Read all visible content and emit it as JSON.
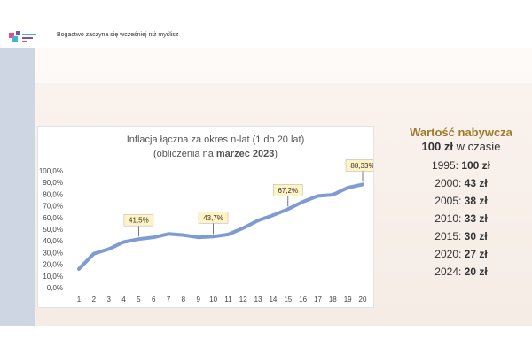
{
  "header": {
    "title": "Bogactwo zaczyna się wcześniej niż myślisz"
  },
  "chart_data": {
    "type": "line",
    "title_line1": "Inflacja łączna za okres n-lat (1 do 20 lat)",
    "title_line2_prefix": "(obliczenia  na ",
    "title_line2_bold": "marzec 2023",
    "title_line2_suffix": ")",
    "categories": [
      "1",
      "2",
      "3",
      "4",
      "5",
      "6",
      "7",
      "8",
      "9",
      "10",
      "11",
      "12",
      "13",
      "14",
      "15",
      "16",
      "17",
      "18",
      "19",
      "20"
    ],
    "values": [
      16,
      29,
      33,
      39,
      41.5,
      43,
      46,
      45,
      43,
      43.7,
      45.5,
      51,
      57.5,
      62,
      67.2,
      73.5,
      78.5,
      79.5,
      85.5,
      88.33
    ],
    "yticks": [
      "0,0%",
      "10,0%",
      "20,0%",
      "30,0%",
      "40,0%",
      "50,0%",
      "60,0%",
      "70,0%",
      "80,0%",
      "90,0%",
      "100,0%"
    ],
    "ylim": [
      0,
      100
    ],
    "grid": false,
    "line_color": "#7f9bd3",
    "annotations": [
      {
        "index": 4,
        "label": "41,5%"
      },
      {
        "index": 9,
        "label": "43,7%"
      },
      {
        "index": 14,
        "label": "67,2%"
      },
      {
        "index": 19,
        "label": "88,33%"
      }
    ]
  },
  "side": {
    "title": "Wartość nabywcza",
    "subtitle_amount": "100 zł",
    "subtitle_text": " w czasie",
    "items": [
      {
        "year": "1995:",
        "value": "100 zł"
      },
      {
        "year": "2000:",
        "value": "43 zł"
      },
      {
        "year": "2005:",
        "value": "38 zł"
      },
      {
        "year": "2010:",
        "value": "33 zł"
      },
      {
        "year": "2015:",
        "value": "30 zł"
      },
      {
        "year": "2020:",
        "value": "27 zł"
      },
      {
        "year": "2024:",
        "value": "20 zł"
      }
    ]
  },
  "colors": {
    "accent": "#a0782a",
    "annotation_fill": "#fff3c4"
  }
}
